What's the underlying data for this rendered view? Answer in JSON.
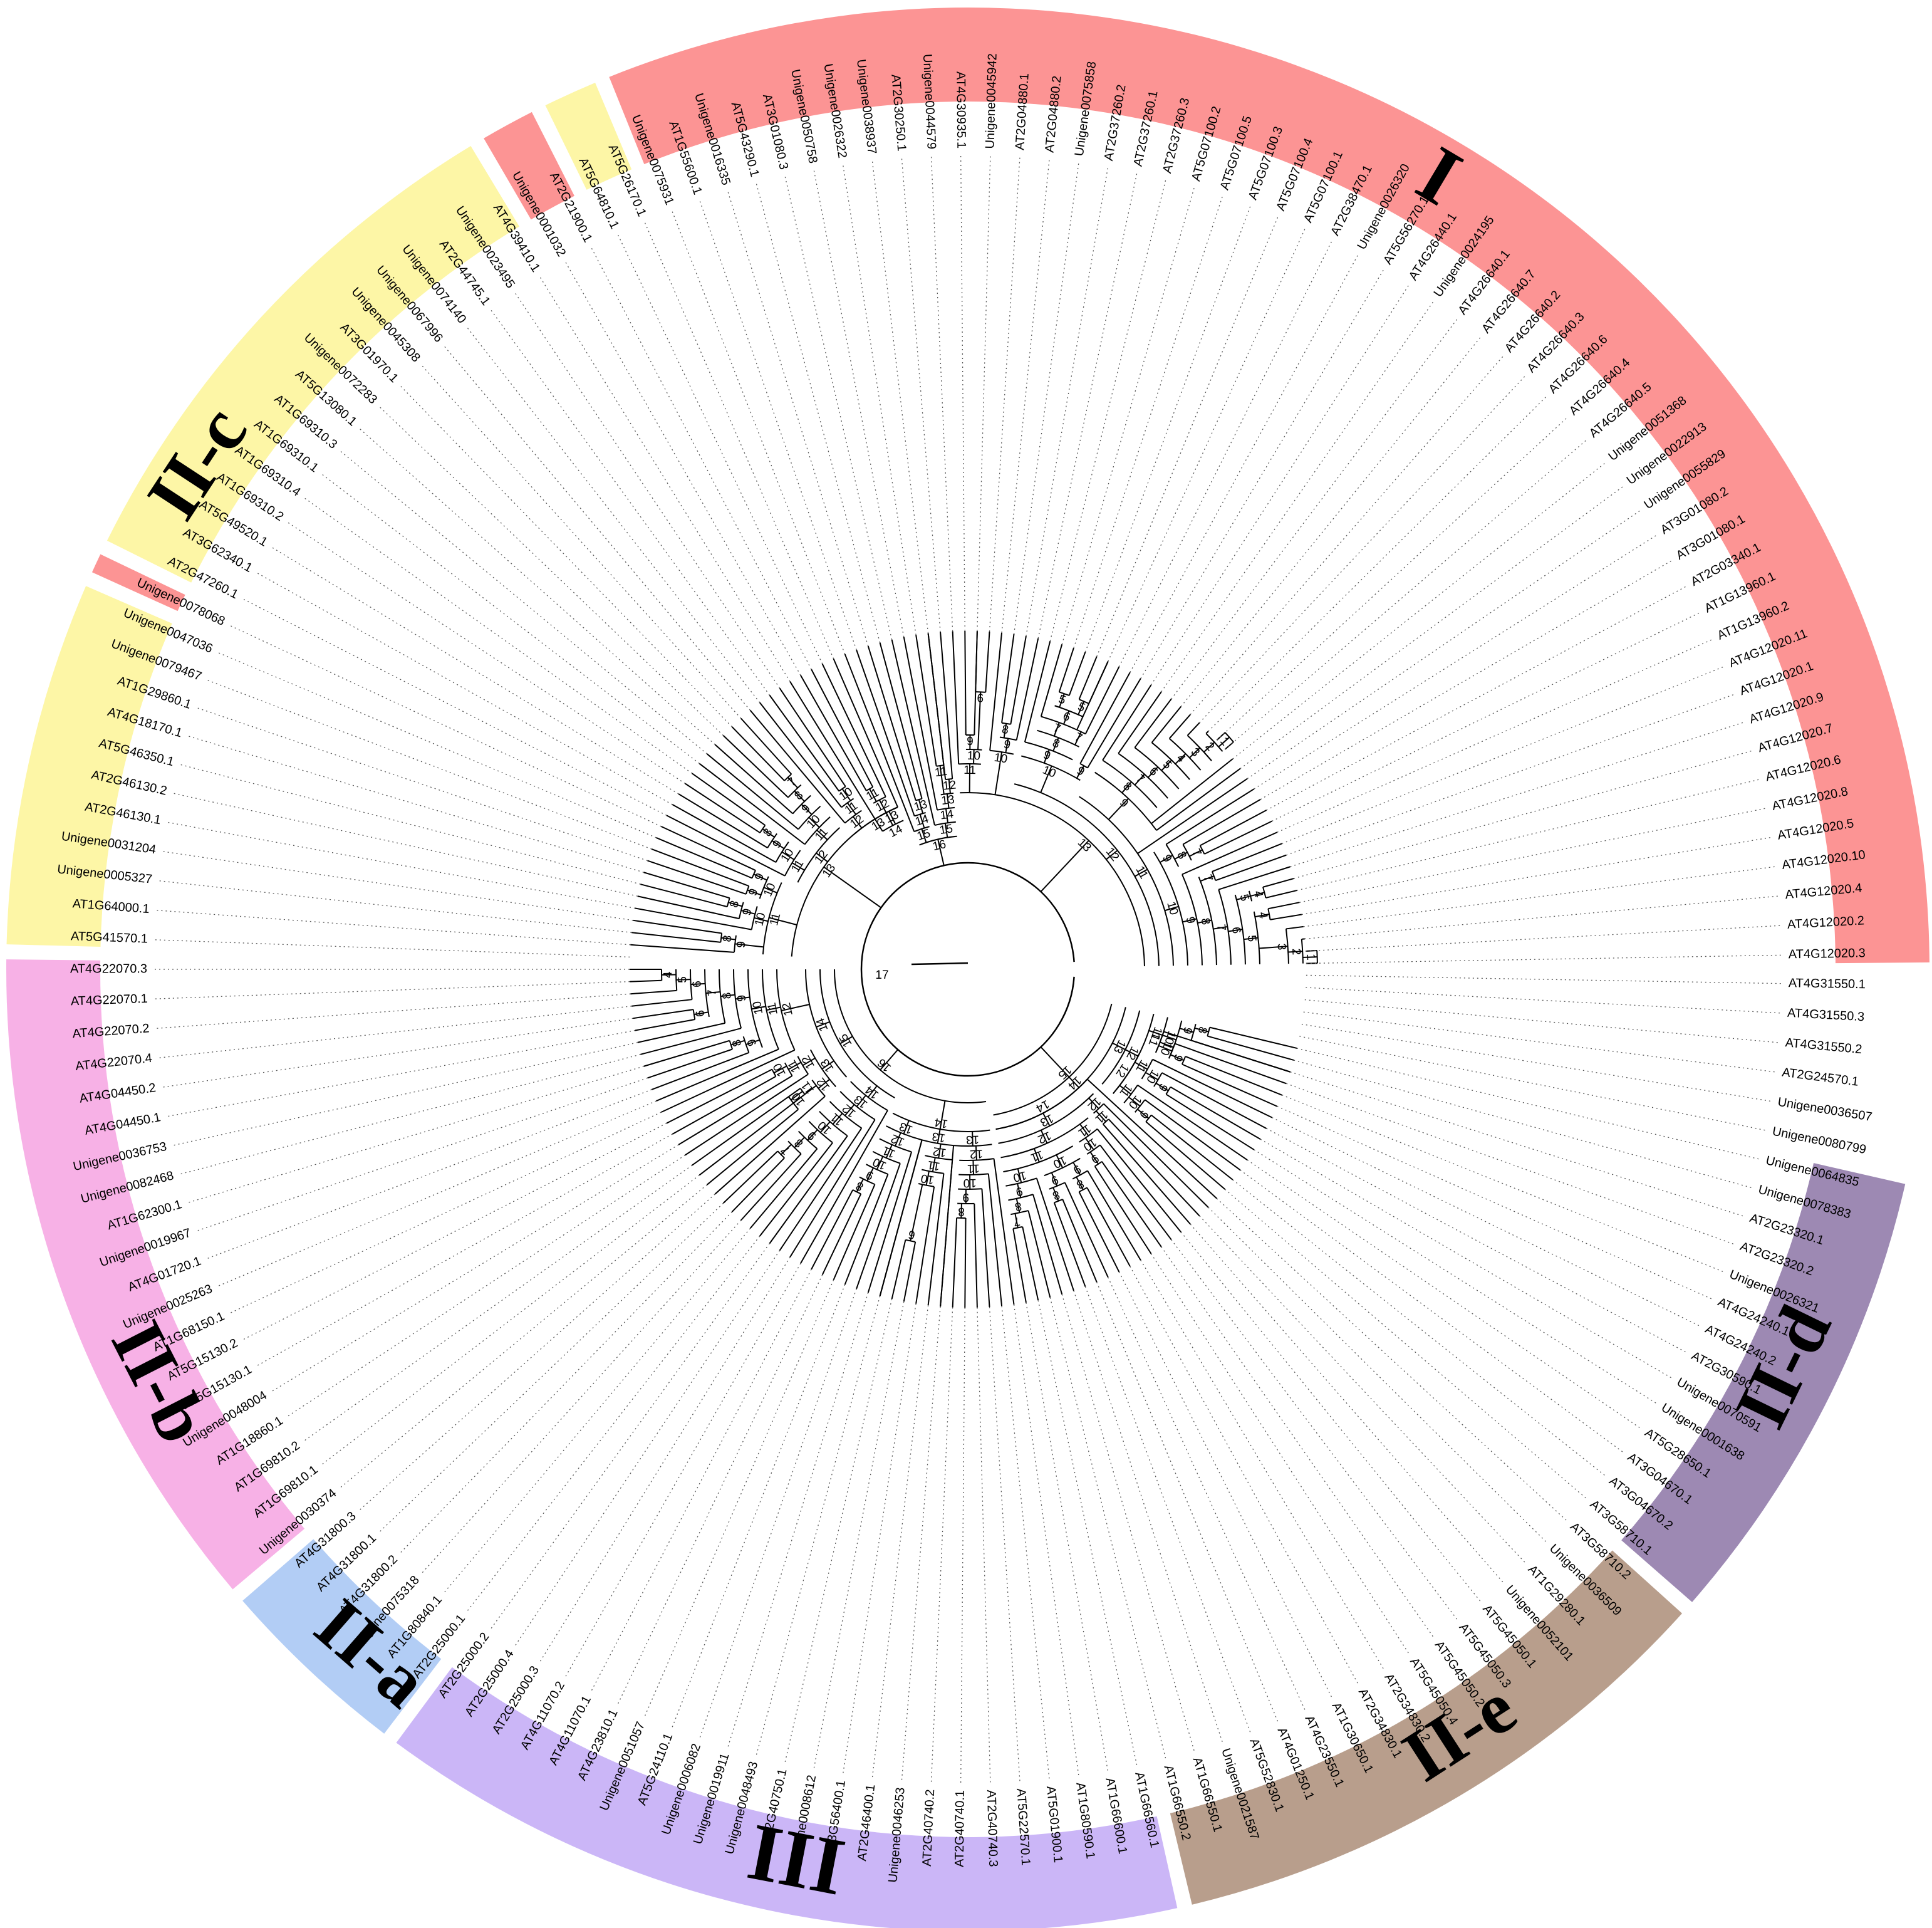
{
  "colors": {
    "I": "#fc9494",
    "II-a": "#b2cdf5",
    "II-b": "#f7b1e6",
    "II-c": "#fdf6a6",
    "II-d": "#9d89b3",
    "II-e": "#b89e8c",
    "III": "#cbb6f7"
  },
  "clade_labels": {
    "I": "I",
    "II-a": "II-a",
    "II-b": "II-b",
    "II-c": "II-c",
    "II-d": "II-d",
    "II-e": "II-e",
    "III": "III"
  },
  "root_label": "17",
  "leaves": [
    "AT4G12020.3",
    "AT4G12020.2",
    "AT4G12020.4",
    "AT4G12020.10",
    "AT4G12020.5",
    "AT4G12020.8",
    "AT4G12020.6",
    "AT4G12020.7",
    "AT4G12020.9",
    "AT4G12020.1",
    "AT4G12020.11",
    "AT1G13960.2",
    "AT1G13960.1",
    "AT2G03340.1",
    "AT3G01080.1",
    "AT3G01080.2",
    "Unigene0055829",
    "Unigene0022913",
    "Unigene0051368",
    "AT4G26640.5",
    "AT4G26640.4",
    "AT4G26640.6",
    "AT4G26640.3",
    "AT4G26640.2",
    "AT4G26640.7",
    "AT4G26640.1",
    "Unigene0024195",
    "AT4G26440.1",
    "AT5G56270.1",
    "Unigene0026320",
    "AT2G38470.1",
    "AT5G07100.1",
    "AT5G07100.4",
    "AT5G07100.3",
    "AT5G07100.5",
    "AT5G07100.2",
    "AT2G37260.3",
    "AT2G37260.1",
    "AT2G37260.2",
    "Unigene0075858",
    "AT2G04880.2",
    "AT2G04880.1",
    "Unigene0045942",
    "AT4G30935.1",
    "Unigene0044579",
    "AT2G30250.1",
    "Unigene0038937",
    "Unigene0026322",
    "Unigene0050758",
    "AT3G01080.3",
    "AT5G43290.1",
    "Unigene0016335",
    "AT1G55600.1",
    "Unigene0075931",
    "AT5G26170.1",
    "AT5G64810.1",
    "AT2G21900.1",
    "Unigene0001032",
    "AT4G39410.1",
    "Unigene0023495",
    "AT2G44745.1",
    "Unigene0074140",
    "Unigene0067996",
    "Unigene0045308",
    "AT3G01970.1",
    "Unigene0072283",
    "AT5G13080.1",
    "AT1G69310.3",
    "AT1G69310.1",
    "AT1G69310.4",
    "AT1G69310.2",
    "AT5G49520.1",
    "AT3G62340.1",
    "AT2G47260.1",
    "Unigene0078068",
    "Unigene0047036",
    "Unigene0079467",
    "AT1G29860.1",
    "AT4G18170.1",
    "AT5G46350.1",
    "AT2G46130.2",
    "AT2G46130.1",
    "Unigene0031204",
    "Unigene0005327",
    "AT1G64000.1",
    "AT5G41570.1",
    "AT4G22070.3",
    "AT4G22070.1",
    "AT4G22070.2",
    "AT4G22070.4",
    "AT4G04450.2",
    "AT4G04450.1",
    "Unigene0036753",
    "Unigene0082468",
    "AT1G62300.1",
    "Unigene0019967",
    "AT4G01720.1",
    "Unigene0025263",
    "AT1G68150.1",
    "AT5G15130.2",
    "AT5G15130.1",
    "Unigene0048004",
    "AT1G18860.1",
    "AT1G69810.2",
    "AT1G69810.1",
    "Unigene0030374",
    "AT4G31800.3",
    "AT4G31800.1",
    "AT4G31800.2",
    "Unigene0075318",
    "AT1G80840.1",
    "AT2G25000.1",
    "AT2G25000.2",
    "AT2G25000.4",
    "AT2G25000.3",
    "AT4G11070.2",
    "AT4G11070.1",
    "AT4G23810.1",
    "Unigene0051057",
    "AT5G24110.1",
    "Unigene0006082",
    "Unigene0019911",
    "Unigene0048493",
    "AT2G40750.1",
    "Unigene0008612",
    "AT3G56400.1",
    "AT2G46400.1",
    "Unigene0046253",
    "AT2G40740.2",
    "AT2G40740.1",
    "AT2G40740.3",
    "AT5G22570.1",
    "AT5G01900.1",
    "AT1G80590.1",
    "AT1G66600.1",
    "AT1G66560.1",
    "AT1G66550.2",
    "AT1G66550.1",
    "Unigene0021587",
    "AT5G52830.1",
    "AT4G01250.1",
    "AT4G23550.1",
    "AT1G30650.1",
    "AT2G34830.1",
    "AT2G34830.2",
    "AT5G45050.4",
    "AT5G45050.2",
    "AT5G45050.3",
    "AT5G45050.1",
    "Unigene0052101",
    "AT1G29280.1",
    "Unigene0036509",
    "AT3G58710.2",
    "AT3G58710.1",
    "AT3G04670.2",
    "AT3G04670.1",
    "AT5G28650.1",
    "Unigene0001638",
    "Unigene0070591",
    "AT2G30590.1",
    "AT4G24240.2",
    "AT4G24240.1",
    "Unigene0026321",
    "AT2G23320.2",
    "AT2G23320.1",
    "Unigene0078383",
    "Unigene0064835",
    "Unigene0080799",
    "Unigene0036507",
    "AT2G24570.1",
    "AT4G31550.2",
    "AT4G31550.3",
    "AT4G31550.1"
  ],
  "clade_ranges": [
    {
      "clade": "I",
      "start": 0,
      "end": 53
    },
    {
      "clade": "II-c",
      "start": 54,
      "end": 55
    },
    {
      "clade": "I",
      "start": 56,
      "end": 57
    },
    {
      "clade": "II-c",
      "start": 58,
      "end": 73
    },
    {
      "clade": "I",
      "start": 74,
      "end": 74
    },
    {
      "clade": "II-c",
      "start": 75,
      "end": 85
    },
    {
      "clade": "II-b",
      "start": 86,
      "end": 105
    },
    {
      "clade": "II-a",
      "start": 106,
      "end": 111
    },
    {
      "clade": "III",
      "start": 112,
      "end": 135
    },
    {
      "clade": "II-e",
      "start": 136,
      "end": 152
    },
    {
      "clade": "II-d",
      "start": 153,
      "end": 166
    }
  ],
  "label_positions": [
    {
      "clade": "I",
      "leaf": 28
    },
    {
      "clade": "II-c",
      "leaf": 70
    },
    {
      "clade": "II-b",
      "leaf": 99
    },
    {
      "clade": "II-a",
      "leaf": 109.5
    },
    {
      "clade": "III",
      "leaf": 124
    },
    {
      "clade": "II-e",
      "leaf": 145
    },
    {
      "clade": "II-d",
      "leaf": 160
    }
  ],
  "internal_nodes": [
    {
      "label": "1",
      "a": 0,
      "b": 1
    },
    {
      "label": "2",
      "a": 0,
      "b": 2
    },
    {
      "label": "3",
      "a": 0,
      "b": 3
    },
    {
      "label": "4",
      "a": 4,
      "b": 5
    },
    {
      "label": "4",
      "a": 6,
      "b": 7
    },
    {
      "label": "5",
      "a": 0,
      "b": 5
    },
    {
      "label": "5",
      "a": 6,
      "b": 7
    },
    {
      "label": "6",
      "a": 0,
      "b": 7
    },
    {
      "label": "7",
      "a": 0,
      "b": 8
    },
    {
      "label": "7",
      "a": 9,
      "b": 10
    },
    {
      "label": "8",
      "a": 0,
      "b": 10
    },
    {
      "label": "9",
      "a": 0,
      "b": 11
    },
    {
      "label": "7",
      "a": 12,
      "b": 13
    },
    {
      "label": "8",
      "a": 12,
      "b": 14
    },
    {
      "label": "9",
      "a": 12,
      "b": 15
    },
    {
      "label": "10",
      "a": 0,
      "b": 15
    },
    {
      "label": "1",
      "a": 19,
      "b": 20
    },
    {
      "label": "2",
      "a": 19,
      "b": 21
    },
    {
      "label": "3",
      "a": 19,
      "b": 22
    },
    {
      "label": "4",
      "a": 19,
      "b": 23
    },
    {
      "label": "5",
      "a": 19,
      "b": 24
    },
    {
      "label": "6",
      "a": 19,
      "b": 25
    },
    {
      "label": "7",
      "a": 19,
      "b": 26
    },
    {
      "label": "8",
      "a": 19,
      "b": 27
    },
    {
      "label": "9",
      "a": 17,
      "b": 27
    },
    {
      "label": "11",
      "a": 0,
      "b": 27
    },
    {
      "label": "9",
      "a": 28,
      "b": 29
    },
    {
      "label": "7",
      "a": 30,
      "b": 31
    },
    {
      "label": "5",
      "a": 31,
      "b": 32
    },
    {
      "label": "5",
      "a": 33,
      "b": 34
    },
    {
      "label": "6",
      "a": 31,
      "b": 34
    },
    {
      "label": "7",
      "a": 31,
      "b": 35
    },
    {
      "label": "8",
      "a": 30,
      "b": 35
    },
    {
      "label": "9",
      "a": 30,
      "b": 36
    },
    {
      "label": "10",
      "a": 28,
      "b": 36
    },
    {
      "label": "12",
      "a": 0,
      "b": 36
    },
    {
      "label": "8",
      "a": 38,
      "b": 39
    },
    {
      "label": "9",
      "a": 37,
      "b": 39
    },
    {
      "label": "10",
      "a": 37,
      "b": 40
    },
    {
      "label": "6",
      "a": 41,
      "b": 42
    },
    {
      "label": "9",
      "a": 42,
      "b": 43
    },
    {
      "label": "10",
      "a": 41,
      "b": 43
    },
    {
      "label": "11",
      "a": 41,
      "b": 44
    },
    {
      "label": "13",
      "a": 0,
      "b": 44
    },
    {
      "label": "12",
      "a": 45,
      "b": 46
    },
    {
      "label": "11",
      "a": 46,
      "b": 47
    },
    {
      "label": "13",
      "a": 45,
      "b": 47
    },
    {
      "label": "14",
      "a": 45,
      "b": 48
    },
    {
      "label": "15",
      "a": 45,
      "b": 49
    },
    {
      "label": "13",
      "a": 50,
      "b": 51
    },
    {
      "label": "14",
      "a": 50,
      "b": 52
    },
    {
      "label": "15",
      "a": 50,
      "b": 53
    },
    {
      "label": "16",
      "a": 45,
      "b": 53
    },
    {
      "label": "11",
      "a": 56,
      "b": 57
    },
    {
      "label": "12",
      "a": 55,
      "b": 57
    },
    {
      "label": "13",
      "a": 54,
      "b": 57
    },
    {
      "label": "14",
      "a": 54,
      "b": 58
    },
    {
      "label": "10",
      "a": 59,
      "b": 60
    },
    {
      "label": "11",
      "a": 59,
      "b": 61
    },
    {
      "label": "12",
      "a": 59,
      "b": 62
    },
    {
      "label": "13",
      "a": 54,
      "b": 62
    },
    {
      "label": "7",
      "a": 63,
      "b": 64
    },
    {
      "label": "8",
      "a": 63,
      "b": 65
    },
    {
      "label": "9",
      "a": 63,
      "b": 66
    },
    {
      "label": "10",
      "a": 63,
      "b": 67
    },
    {
      "label": "11",
      "a": 63,
      "b": 68
    },
    {
      "label": "8",
      "a": 69,
      "b": 70
    },
    {
      "label": "9",
      "a": 69,
      "b": 71
    },
    {
      "label": "10",
      "a": 69,
      "b": 72
    },
    {
      "label": "11",
      "a": 69,
      "b": 73
    },
    {
      "label": "12",
      "a": 63,
      "b": 73
    },
    {
      "label": "9",
      "a": 74,
      "b": 75
    },
    {
      "label": "9",
      "a": 76,
      "b": 77
    },
    {
      "label": "10",
      "a": 74,
      "b": 77
    },
    {
      "label": "8",
      "a": 78,
      "b": 79
    },
    {
      "label": "9",
      "a": 78,
      "b": 80
    },
    {
      "label": "10",
      "a": 78,
      "b": 81
    },
    {
      "label": "8",
      "a": 82,
      "b": 83
    },
    {
      "label": "9",
      "a": 82,
      "b": 84
    },
    {
      "label": "11",
      "a": 74,
      "b": 84
    },
    {
      "label": "13",
      "a": 54,
      "b": 84
    },
    {
      "label": "4",
      "a": 86,
      "b": 87
    },
    {
      "label": "5",
      "a": 86,
      "b": 88
    },
    {
      "label": "6",
      "a": 86,
      "b": 89
    },
    {
      "label": "6",
      "a": 90,
      "b": 91
    },
    {
      "label": "7",
      "a": 86,
      "b": 91
    },
    {
      "label": "8",
      "a": 86,
      "b": 92
    },
    {
      "label": "9",
      "a": 86,
      "b": 93
    },
    {
      "label": "8",
      "a": 94,
      "b": 95
    },
    {
      "label": "9",
      "a": 94,
      "b": 96
    },
    {
      "label": "10",
      "a": 86,
      "b": 96
    },
    {
      "label": "11",
      "a": 86,
      "b": 97
    },
    {
      "label": "12",
      "a": 86,
      "b": 98
    },
    {
      "label": "10",
      "a": 99,
      "b": 100
    },
    {
      "label": "11",
      "a": 99,
      "b": 101
    },
    {
      "label": "12",
      "a": 99,
      "b": 102
    },
    {
      "label": "11",
      "a": 103,
      "b": 104
    },
    {
      "label": "10",
      "a": 103,
      "b": 105
    },
    {
      "label": "12",
      "a": 103,
      "b": 106
    },
    {
      "label": "13",
      "a": 99,
      "b": 106
    },
    {
      "label": "14",
      "a": 86,
      "b": 106
    },
    {
      "label": "7",
      "a": 107,
      "b": 108
    },
    {
      "label": "8",
      "a": 107,
      "b": 109
    },
    {
      "label": "9",
      "a": 107,
      "b": 110
    },
    {
      "label": "10",
      "a": 107,
      "b": 111
    },
    {
      "label": "11",
      "a": 107,
      "b": 112
    },
    {
      "label": "12",
      "a": 107,
      "b": 113
    },
    {
      "label": "13",
      "a": 107,
      "b": 114
    },
    {
      "label": "14",
      "a": 107,
      "b": 115
    },
    {
      "label": "15",
      "a": 86,
      "b": 115
    },
    {
      "label": "8",
      "a": 116,
      "b": 117
    },
    {
      "label": "9",
      "a": 116,
      "b": 118
    },
    {
      "label": "10",
      "a": 116,
      "b": 119
    },
    {
      "label": "11",
      "a": 116,
      "b": 120
    },
    {
      "label": "12",
      "a": 116,
      "b": 121
    },
    {
      "label": "13",
      "a": 116,
      "b": 122
    },
    {
      "label": "6",
      "a": 123,
      "b": 124
    },
    {
      "label": "10",
      "a": 123,
      "b": 125
    },
    {
      "label": "11",
      "a": 123,
      "b": 126
    },
    {
      "label": "12",
      "a": 123,
      "b": 127
    },
    {
      "label": "13",
      "a": 122,
      "b": 127
    },
    {
      "label": "8",
      "a": 128,
      "b": 129
    },
    {
      "label": "9",
      "a": 128,
      "b": 130
    },
    {
      "label": "10",
      "a": 128,
      "b": 131
    },
    {
      "label": "11",
      "a": 128,
      "b": 132
    },
    {
      "label": "12",
      "a": 128,
      "b": 133
    },
    {
      "label": "13",
      "a": 127,
      "b": 133
    },
    {
      "label": "14",
      "a": 116,
      "b": 133
    },
    {
      "label": "16",
      "a": 86,
      "b": 133
    },
    {
      "label": "7",
      "a": 134,
      "b": 135
    },
    {
      "label": "8",
      "a": 134,
      "b": 136
    },
    {
      "label": "9",
      "a": 134,
      "b": 137
    },
    {
      "label": "10",
      "a": 134,
      "b": 138
    },
    {
      "label": "8",
      "a": 139,
      "b": 140
    },
    {
      "label": "9",
      "a": 139,
      "b": 141
    },
    {
      "label": "8",
      "a": 142,
      "b": 143
    },
    {
      "label": "9",
      "a": 142,
      "b": 144
    },
    {
      "label": "10",
      "a": 139,
      "b": 144
    },
    {
      "label": "11",
      "a": 134,
      "b": 144
    },
    {
      "label": "9",
      "a": 145,
      "b": 146
    },
    {
      "label": "10",
      "a": 145,
      "b": 147
    },
    {
      "label": "11",
      "a": 145,
      "b": 148
    },
    {
      "label": "12",
      "a": 134,
      "b": 148
    },
    {
      "label": "11",
      "a": 149,
      "b": 150
    },
    {
      "label": "12",
      "a": 149,
      "b": 151
    },
    {
      "label": "13",
      "a": 134,
      "b": 151
    },
    {
      "label": "14",
      "a": 134,
      "b": 152
    },
    {
      "label": "9",
      "a": 153,
      "b": 154
    },
    {
      "label": "10",
      "a": 153,
      "b": 155
    },
    {
      "label": "11",
      "a": 153,
      "b": 156
    },
    {
      "label": "9",
      "a": 157,
      "b": 158
    },
    {
      "label": "10",
      "a": 157,
      "b": 159
    },
    {
      "label": "11",
      "a": 157,
      "b": 160
    },
    {
      "label": "12",
      "a": 153,
      "b": 160
    },
    {
      "label": "9",
      "a": 161,
      "b": 162
    },
    {
      "label": "10",
      "a": 161,
      "b": 163
    },
    {
      "label": "11",
      "a": 161,
      "b": 164
    },
    {
      "label": "8",
      "a": 165,
      "b": 166
    },
    {
      "label": "9",
      "a": 164,
      "b": 166
    },
    {
      "label": "10",
      "a": 161,
      "b": 166
    },
    {
      "label": "11",
      "a": 161,
      "b": 166
    },
    {
      "label": "12",
      "a": 153,
      "b": 166
    },
    {
      "label": "13",
      "a": 153,
      "b": 166
    },
    {
      "label": "14",
      "a": 134,
      "b": 166
    },
    {
      "label": "15",
      "a": 134,
      "b": 166
    }
  ]
}
